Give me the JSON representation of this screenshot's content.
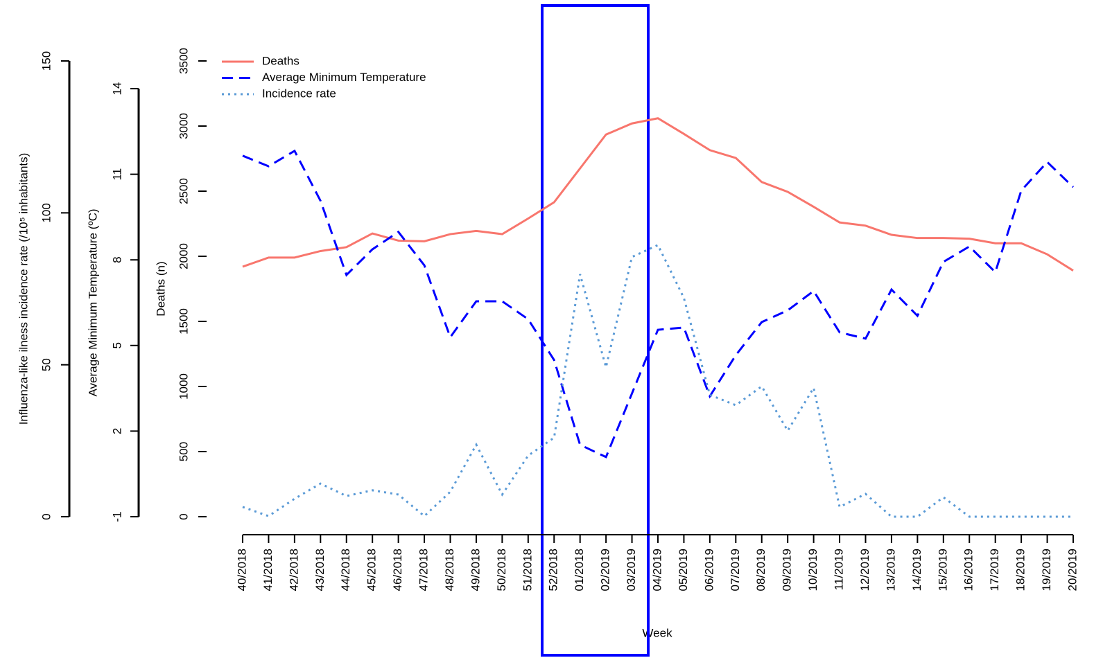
{
  "chart_data": {
    "type": "line",
    "xlabel": "Week",
    "ylabel": "Deaths (n)",
    "y2label": "Average Minimum Temperature (ºC)",
    "y3label": "Influenza-like ilness incidence rate (/10⁵ inhabitants)",
    "categories": [
      "40/2018",
      "41/2018",
      "42/2018",
      "43/2018",
      "44/2018",
      "45/2018",
      "46/2018",
      "47/2018",
      "48/2018",
      "49/2018",
      "50/2018",
      "51/2018",
      "52/2018",
      "01/2018",
      "02/2019",
      "03/2019",
      "04/2019",
      "05/2019",
      "06/2019",
      "07/2019",
      "08/2019",
      "09/2019",
      "10/2019",
      "11/2019",
      "12/2019",
      "13/2019",
      "14/2019",
      "15/2019",
      "16/2019",
      "17/2019",
      "18/2019",
      "19/2019",
      "20/2019"
    ],
    "series": [
      {
        "name": "Deaths",
        "color": "#f8766d",
        "axis": "y",
        "values": [
          1920,
          1990,
          1990,
          2040,
          2070,
          2175,
          2120,
          2115,
          2170,
          2195,
          2170,
          2290,
          2415,
          2675,
          2935,
          3020,
          3060,
          2940,
          2815,
          2755,
          2570,
          2495,
          2380,
          2260,
          2235,
          2165,
          2140,
          2140,
          2135,
          2100,
          2100,
          2015,
          1890
        ]
      },
      {
        "name": "Average Minimum Temperature",
        "color": "#0000ff",
        "axis": "y2",
        "values": [
          11.65,
          11.28,
          11.82,
          10.07,
          7.47,
          8.37,
          8.98,
          7.81,
          5.29,
          6.55,
          6.55,
          5.92,
          4.49,
          1.52,
          1.09,
          3.32,
          5.55,
          5.63,
          3.22,
          4.66,
          5.82,
          6.23,
          6.91,
          5.46,
          5.24,
          6.96,
          6.04,
          7.93,
          8.47,
          7.57,
          10.43,
          11.43,
          10.55
        ]
      },
      {
        "name": "Incidence rate",
        "color": "#5a9ad6",
        "axis": "y3",
        "values": [
          3.2,
          0.2,
          5.9,
          10.9,
          6.8,
          8.7,
          7.3,
          0.2,
          8.2,
          23.7,
          7.3,
          20.1,
          26,
          79.8,
          49.2,
          85.5,
          89.4,
          72,
          40.1,
          36.7,
          42.9,
          28.3,
          42.4,
          3.2,
          7.5,
          0,
          0,
          6.4,
          0,
          0,
          0,
          0,
          0
        ]
      }
    ],
    "ylim": [
      0,
      3500
    ],
    "yticks": [
      0,
      500,
      1000,
      1500,
      2000,
      2500,
      3000,
      3500
    ],
    "y2lim": [
      -1,
      14
    ],
    "y2ticks": [
      -1,
      2,
      5,
      8,
      11,
      14
    ],
    "y3lim": [
      0,
      150
    ],
    "y3ticks": [
      0,
      50,
      100,
      150
    ],
    "legend": "top-left"
  }
}
